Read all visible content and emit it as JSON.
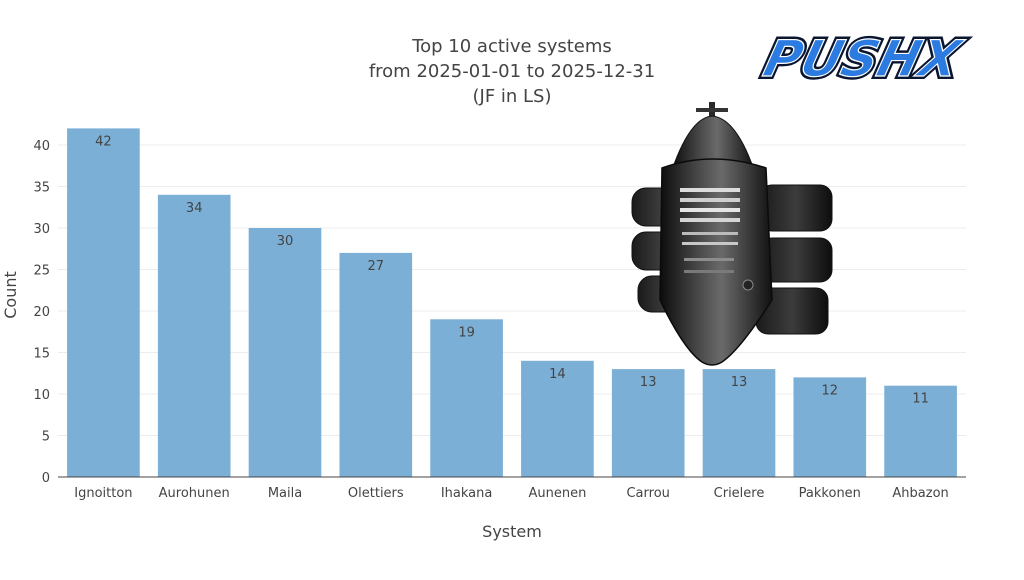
{
  "logo": {
    "text": "PUSHX"
  },
  "chart_data": {
    "type": "bar",
    "title_lines": [
      "Top 10 active systems",
      "from 2025-01-01 to 2025-12-31",
      "(JF in LS)"
    ],
    "xlabel": "System",
    "ylabel": "Count",
    "categories": [
      "Ignoitton",
      "Aurohunen",
      "Maila",
      "Olettiers",
      "Ihakana",
      "Aunenen",
      "Carrou",
      "Crielere",
      "Pakkonen",
      "Ahbazon"
    ],
    "values": [
      42,
      34,
      30,
      27,
      19,
      14,
      13,
      13,
      12,
      11
    ],
    "ylim": [
      0,
      43
    ],
    "yticks": [
      0,
      5,
      10,
      15,
      20,
      25,
      30,
      35,
      40
    ],
    "grid": true,
    "data_labels": true,
    "bar_color": "#7bafd6"
  },
  "colors": {
    "grid": "#ececec",
    "axis": "#444444",
    "text": "#444444",
    "logo_blue": "#1b5fc4",
    "logo_dark": "#0a1530"
  },
  "icons": {
    "ship": "jump-freighter-ship-icon"
  }
}
